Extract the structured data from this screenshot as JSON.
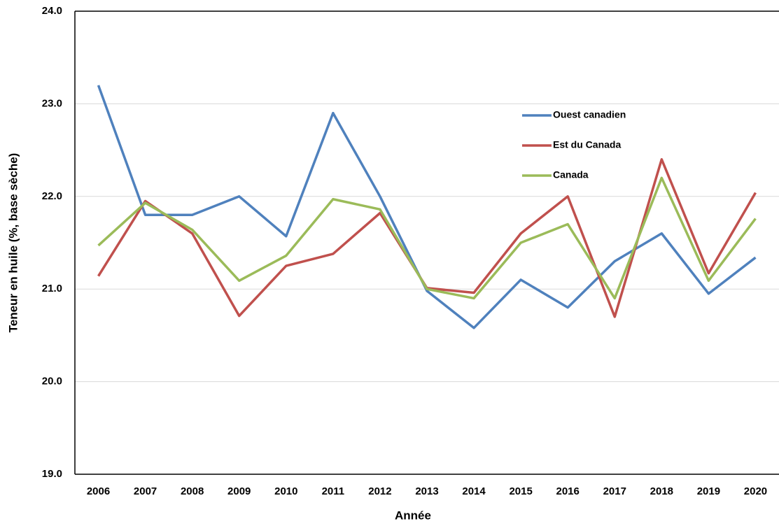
{
  "chart_data": {
    "type": "line",
    "x_label": "Année",
    "y_label": "Teneur en huile (%, base sèche)",
    "categories": [
      "2006",
      "2007",
      "2008",
      "2009",
      "2010",
      "2011",
      "2012",
      "2013",
      "2014",
      "2015",
      "2016",
      "2017",
      "2018",
      "2019",
      "2020"
    ],
    "series": [
      {
        "name": "Ouest canadien",
        "color": "#4f81bd",
        "values": [
          23.2,
          21.8,
          21.8,
          22.0,
          21.57,
          22.9,
          22.0,
          20.98,
          20.58,
          21.1,
          20.8,
          21.3,
          21.6,
          20.95,
          21.34
        ]
      },
      {
        "name": "Est du Canada",
        "color": "#c0504d",
        "values": [
          21.14,
          21.95,
          21.6,
          20.71,
          21.25,
          21.38,
          21.82,
          21.01,
          20.96,
          21.6,
          22.0,
          20.7,
          22.4,
          21.17,
          22.04
        ]
      },
      {
        "name": "Canada",
        "color": "#9bbb59",
        "values": [
          21.47,
          21.93,
          21.64,
          21.09,
          21.36,
          21.97,
          21.86,
          21.0,
          20.9,
          21.5,
          21.7,
          20.9,
          22.2,
          21.09,
          21.76
        ]
      }
    ],
    "ylim": [
      19,
      24
    ],
    "yticks": [
      {
        "value": 19,
        "label": "19.0"
      },
      {
        "value": 20,
        "label": "20.0"
      },
      {
        "value": 21,
        "label": "21.0"
      },
      {
        "value": 22,
        "label": "22.0"
      },
      {
        "value": 23,
        "label": "23.0"
      },
      {
        "value": 24,
        "label": "24.0"
      }
    ],
    "grid": true,
    "legend": "upper-right"
  }
}
